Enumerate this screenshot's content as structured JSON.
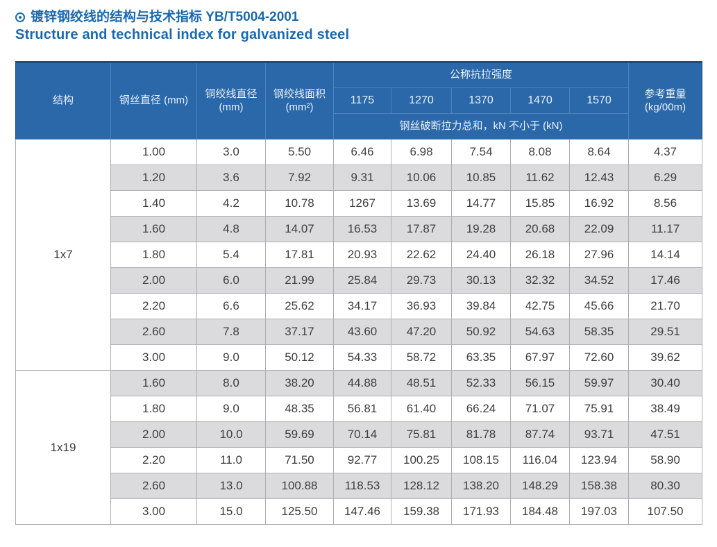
{
  "page_title": {
    "icon": "circled-dot-icon",
    "line1_zh": "镀锌钢绞线的结构与技术指标 YB/T5004-2001",
    "line2_en": "Structure and technical index for galvanized steel"
  },
  "colors": {
    "title_blue": "#1a69ae",
    "header_bg": "#2a68a9",
    "header_line": "#4c83ba",
    "header_top": "#174e85",
    "header_text": "#e9f1f9",
    "row_gray": "#dbdbdd",
    "cell_line": "#aeaeb0",
    "outer_line": "#97979a",
    "text": "#3e3e40"
  },
  "table": {
    "header": {
      "structure": "结构",
      "wire_diameter": "钢丝直径 (mm)",
      "strand_diameter": [
        "铜绞线直径",
        "(mm)"
      ],
      "strand_area": [
        "钢绞线面积",
        "(mm²)"
      ],
      "tensile_group": "公称抗拉强度",
      "strength_grades": [
        "1175",
        "1270",
        "1370",
        "1470",
        "1570"
      ],
      "breaking_note": "钢丝破断拉力总和，kN 不小于 (kN)",
      "ref_weight": [
        "参考重量",
        "(kg/00m)"
      ]
    },
    "sections": [
      {
        "structure": "1x7",
        "rows": [
          [
            "1.00",
            "3.0",
            "5.50",
            "6.46",
            "6.98",
            "7.54",
            "8.08",
            "8.64",
            "4.37"
          ],
          [
            "1.20",
            "3.6",
            "7.92",
            "9.31",
            "10.06",
            "10.85",
            "11.62",
            "12.43",
            "6.29"
          ],
          [
            "1.40",
            "4.2",
            "10.78",
            "1267",
            "13.69",
            "14.77",
            "15.85",
            "16.92",
            "8.56"
          ],
          [
            "1.60",
            "4.8",
            "14.07",
            "16.53",
            "17.87",
            "19.28",
            "20.68",
            "22.09",
            "11.17"
          ],
          [
            "1.80",
            "5.4",
            "17.81",
            "20.93",
            "22.62",
            "24.40",
            "26.18",
            "27.96",
            "14.14"
          ],
          [
            "2.00",
            "6.0",
            "21.99",
            "25.84",
            "29.73",
            "30.13",
            "32.32",
            "34.52",
            "17.46"
          ],
          [
            "2.20",
            "6.6",
            "25.62",
            "34.17",
            "36.93",
            "39.84",
            "42.75",
            "45.66",
            "21.70"
          ],
          [
            "2.60",
            "7.8",
            "37.17",
            "43.60",
            "47.20",
            "50.92",
            "54.63",
            "58.35",
            "29.51"
          ],
          [
            "3.00",
            "9.0",
            "50.12",
            "54.33",
            "58.72",
            "63.35",
            "67.97",
            "72.60",
            "39.62"
          ]
        ]
      },
      {
        "structure": "1x19",
        "rows": [
          [
            "1.60",
            "8.0",
            "38.20",
            "44.88",
            "48.51",
            "52.33",
            "56.15",
            "59.97",
            "30.40"
          ],
          [
            "1.80",
            "9.0",
            "48.35",
            "56.81",
            "61.40",
            "66.24",
            "71.07",
            "75.91",
            "38.49"
          ],
          [
            "2.00",
            "10.0",
            "59.69",
            "70.14",
            "75.81",
            "81.78",
            "87.74",
            "93.71",
            "47.51"
          ],
          [
            "2.20",
            "11.0",
            "71.50",
            "92.77",
            "100.25",
            "108.15",
            "116.04",
            "123.94",
            "58.90"
          ],
          [
            "2.60",
            "13.0",
            "100.88",
            "118.53",
            "128.12",
            "138.20",
            "148.29",
            "158.38",
            "80.30"
          ],
          [
            "3.00",
            "15.0",
            "125.50",
            "147.46",
            "159.38",
            "171.93",
            "184.48",
            "197.03",
            "107.50"
          ]
        ]
      }
    ]
  }
}
